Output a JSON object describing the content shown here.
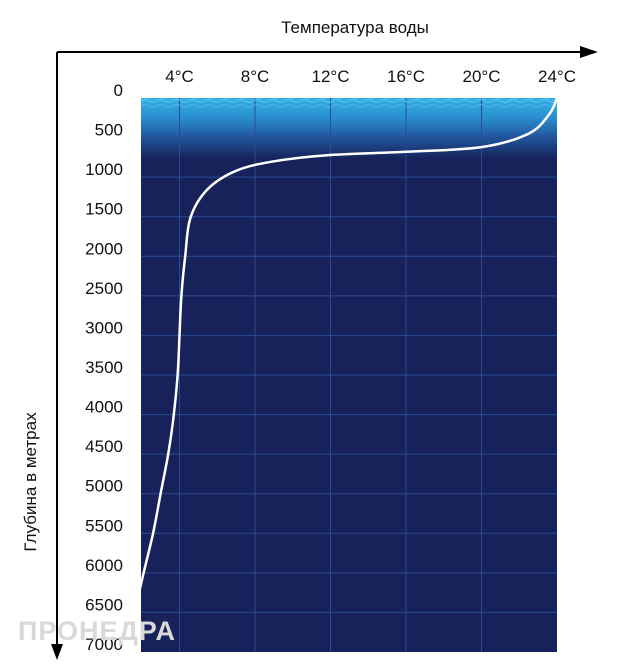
{
  "chart_data": {
    "type": "line",
    "title": "",
    "xlabel": "Температура воды",
    "ylabel": "Глубина в метрах",
    "x_ticks": [
      "4°C",
      "8°C",
      "12°C",
      "16°C",
      "20°C",
      "24°C"
    ],
    "x_tick_values": [
      4,
      8,
      12,
      16,
      20,
      24
    ],
    "y_ticks": [
      "0",
      "500",
      "1000",
      "1500",
      "2000",
      "2500",
      "3000",
      "3500",
      "4000",
      "4500",
      "5000",
      "5500",
      "6000",
      "6500",
      "7000"
    ],
    "y_tick_values": [
      0,
      500,
      1000,
      1500,
      2000,
      2500,
      3000,
      3500,
      4000,
      4500,
      5000,
      5500,
      6000,
      6500,
      7000
    ],
    "xlim": [
      0,
      24
    ],
    "ylim": [
      0,
      7000
    ],
    "y_inverted": true,
    "grid": true,
    "series": [
      {
        "values": [
          {
            "x": 24.0,
            "y": 0
          },
          {
            "x": 23.6,
            "y": 200
          },
          {
            "x": 22.5,
            "y": 450
          },
          {
            "x": 20.0,
            "y": 620
          },
          {
            "x": 16.0,
            "y": 680
          },
          {
            "x": 12.0,
            "y": 720
          },
          {
            "x": 9.0,
            "y": 800
          },
          {
            "x": 7.0,
            "y": 920
          },
          {
            "x": 5.5,
            "y": 1150
          },
          {
            "x": 4.6,
            "y": 1500
          },
          {
            "x": 4.3,
            "y": 2000
          },
          {
            "x": 4.1,
            "y": 2500
          },
          {
            "x": 4.0,
            "y": 3000
          },
          {
            "x": 3.9,
            "y": 3500
          },
          {
            "x": 3.7,
            "y": 4000
          },
          {
            "x": 3.4,
            "y": 4500
          },
          {
            "x": 3.0,
            "y": 5000
          },
          {
            "x": 2.6,
            "y": 5500
          },
          {
            "x": 2.1,
            "y": 6000
          },
          {
            "x": 1.6,
            "y": 6500
          },
          {
            "x": 1.0,
            "y": 7000
          }
        ],
        "color": "#ffffff"
      }
    ],
    "colors": {
      "deep_water": "#162259",
      "surface_water": "#2fa6df",
      "grid": "#2c4b95"
    }
  },
  "watermark": "ПРОНЕДРА"
}
